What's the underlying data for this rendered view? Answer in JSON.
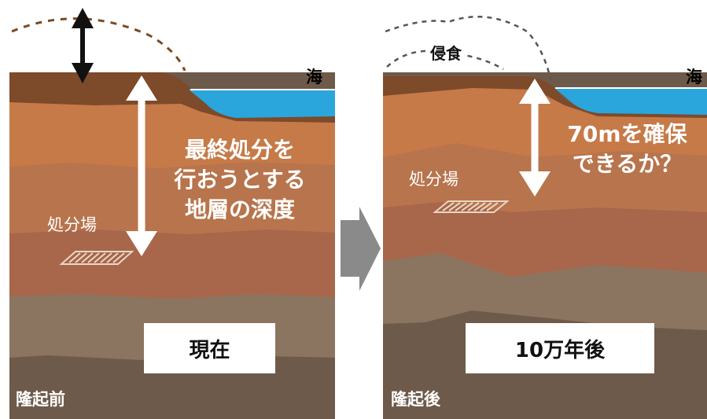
{
  "left_panel": {
    "sea_label": "海",
    "depth_text": [
      "最終処分を",
      "行おうとする",
      "地層の深度"
    ],
    "site_label": "処分場",
    "time_label": "現在",
    "bottom_label": "隆起前"
  },
  "right_panel": {
    "sea_label": "海",
    "erosion_label": "侵食",
    "question_text": [
      "70mを確保",
      "できるか？"
    ],
    "site_label": "処分場",
    "time_label": "10万年後",
    "bottom_label": "隆起後"
  },
  "colors": {
    "topsoil": "#7d4a2a",
    "layer_orange": "#c67a48",
    "layer_light": "#bf7f55",
    "layer_mid": "#a8664a",
    "layer_tan": "#8c7560",
    "layer_deep": "#6e5a4a",
    "sea": "#2aa6dc",
    "arrow_gray": "#8a8a8a"
  }
}
